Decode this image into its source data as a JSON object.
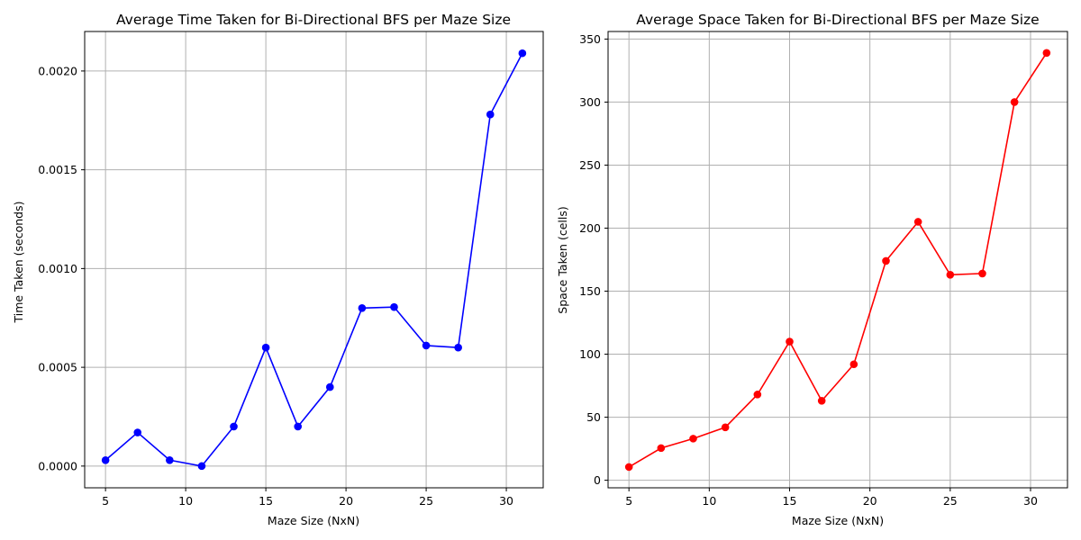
{
  "chart_data": [
    {
      "type": "line",
      "title": "Average Time Taken for Bi-Directional BFS per Maze Size",
      "xlabel": "Maze Size (NxN)",
      "ylabel": "Time Taken (seconds)",
      "xlim": [
        3.7,
        32.3
      ],
      "ylim": [
        -0.00011,
        0.0022
      ],
      "xticks": [
        5,
        10,
        15,
        20,
        25,
        30
      ],
      "xtick_labels": [
        "5",
        "10",
        "15",
        "20",
        "25",
        "30"
      ],
      "yticks": [
        0,
        0.0005,
        0.001,
        0.0015,
        0.002
      ],
      "ytick_labels": [
        "0.0000",
        "0.0005",
        "0.0010",
        "0.0015",
        "0.0020"
      ],
      "grid": true,
      "color": "#0000ff",
      "x": [
        5,
        7,
        9,
        11,
        13,
        15,
        17,
        19,
        21,
        23,
        25,
        27,
        29,
        31
      ],
      "y": [
        3e-05,
        0.00017,
        3e-05,
        0.0,
        0.0002,
        0.0006,
        0.0002,
        0.0004,
        0.0008,
        0.000805,
        0.00061,
        0.0006,
        0.00178,
        0.00209
      ]
    },
    {
      "type": "line",
      "title": "Average Space Taken for Bi-Directional BFS per Maze Size",
      "xlabel": "Maze Size (NxN)",
      "ylabel": "Space Taken (cells)",
      "xlim": [
        3.7,
        32.3
      ],
      "ylim": [
        -6,
        356
      ],
      "xticks": [
        5,
        10,
        15,
        20,
        25,
        30
      ],
      "xtick_labels": [
        "5",
        "10",
        "15",
        "20",
        "25",
        "30"
      ],
      "yticks": [
        0,
        50,
        100,
        150,
        200,
        250,
        300,
        350
      ],
      "ytick_labels": [
        "0",
        "50",
        "100",
        "150",
        "200",
        "250",
        "300",
        "350"
      ],
      "grid": true,
      "color": "#ff0000",
      "x": [
        5,
        7,
        9,
        11,
        13,
        15,
        17,
        19,
        21,
        23,
        25,
        27,
        29,
        31
      ],
      "y": [
        10.5,
        25.5,
        33,
        42,
        68,
        110,
        63,
        92,
        174,
        205,
        163,
        164,
        300,
        339
      ]
    }
  ]
}
